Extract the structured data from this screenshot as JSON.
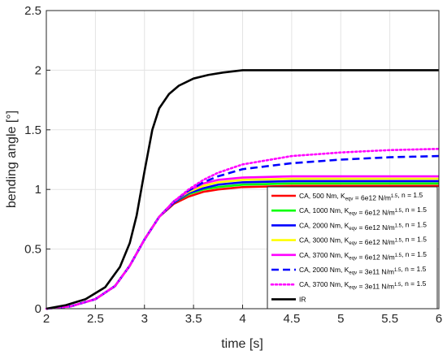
{
  "chart_data": {
    "type": "line",
    "xlabel": "time [s]",
    "ylabel": "bending angle [°]",
    "xlim": [
      2,
      6
    ],
    "ylim": [
      0,
      2.5
    ],
    "x_ticks": [
      "2",
      "2.5",
      "3",
      "3.5",
      "4",
      "4.5",
      "5",
      "5.5",
      "6"
    ],
    "y_ticks": [
      "0",
      "0.5",
      "1",
      "1.5",
      "2",
      "2.5"
    ],
    "grid": true,
    "legend_position": "bottom-right",
    "series": [
      {
        "name": "CA,  500 Nm, Keqv = 6e12 N/m1.5, n = 1.5",
        "legend": {
          "prefix": "CA,  500 Nm, K",
          "sub": "eqv",
          "mid": " = 6e12 N/m",
          "sup": "1.5",
          "suffix": ", n = 1.5"
        },
        "color": "#ff0000",
        "style": "solid",
        "x": [
          2,
          2.25,
          2.5,
          2.7,
          2.85,
          3,
          3.15,
          3.3,
          3.45,
          3.6,
          3.75,
          4,
          4.5,
          5,
          6
        ],
        "y": [
          0,
          0.02,
          0.08,
          0.19,
          0.36,
          0.58,
          0.77,
          0.88,
          0.94,
          0.98,
          1.0,
          1.02,
          1.03,
          1.03,
          1.03
        ]
      },
      {
        "name": "CA, 1000 Nm, Keqv = 6e12 N/m1.5, n = 1.5",
        "legend": {
          "prefix": "CA, 1000 Nm, K",
          "sub": "eqv",
          "mid": " = 6e12 N/m",
          "sup": "1.5",
          "suffix": ", n = 1.5"
        },
        "color": "#00ff00",
        "style": "solid",
        "x": [
          2,
          2.25,
          2.5,
          2.7,
          2.85,
          3,
          3.15,
          3.3,
          3.45,
          3.6,
          3.75,
          4,
          4.5,
          5,
          6
        ],
        "y": [
          0,
          0.02,
          0.08,
          0.19,
          0.36,
          0.58,
          0.77,
          0.89,
          0.96,
          1.0,
          1.02,
          1.04,
          1.05,
          1.05,
          1.05
        ]
      },
      {
        "name": "CA, 2000 Nm, Keqv = 6e12 N/m1.5, n = 1.5",
        "legend": {
          "prefix": "CA, 2000 Nm, K",
          "sub": "eqv",
          "mid": " = 6e12 N/m",
          "sup": "1.5",
          "suffix": ", n = 1.5"
        },
        "color": "#0000ff",
        "style": "solid",
        "x": [
          2,
          2.25,
          2.5,
          2.7,
          2.85,
          3,
          3.15,
          3.3,
          3.45,
          3.6,
          3.75,
          4,
          4.5,
          5,
          6
        ],
        "y": [
          0,
          0.02,
          0.08,
          0.19,
          0.36,
          0.58,
          0.77,
          0.89,
          0.97,
          1.01,
          1.04,
          1.06,
          1.07,
          1.07,
          1.07
        ]
      },
      {
        "name": "CA, 3000 Nm, Keqv = 6e12 N/m1.5, n = 1.5",
        "legend": {
          "prefix": "CA, 3000 Nm, K",
          "sub": "eqv",
          "mid": " = 6e12 N/m",
          "sup": "1.5",
          "suffix": ", n = 1.5"
        },
        "color": "#ffff00",
        "style": "solid",
        "x": [
          2,
          2.25,
          2.5,
          2.7,
          2.85,
          3,
          3.15,
          3.3,
          3.45,
          3.6,
          3.75,
          4,
          4.5,
          5,
          6
        ],
        "y": [
          0,
          0.02,
          0.08,
          0.19,
          0.36,
          0.58,
          0.77,
          0.9,
          0.98,
          1.03,
          1.06,
          1.08,
          1.09,
          1.09,
          1.09
        ]
      },
      {
        "name": "CA, 3700 Nm, Keqv = 6e12 N/m1.5, n = 1.5",
        "legend": {
          "prefix": "CA, 3700 Nm, K",
          "sub": "eqv",
          "mid": " = 6e12 N/m",
          "sup": "1.5",
          "suffix": ", n = 1.5"
        },
        "color": "#ff00ff",
        "style": "solid",
        "x": [
          2,
          2.25,
          2.5,
          2.7,
          2.85,
          3,
          3.15,
          3.3,
          3.45,
          3.6,
          3.75,
          4,
          4.5,
          5,
          6
        ],
        "y": [
          0,
          0.02,
          0.08,
          0.19,
          0.36,
          0.58,
          0.77,
          0.9,
          0.99,
          1.05,
          1.08,
          1.1,
          1.11,
          1.11,
          1.11
        ]
      },
      {
        "name": "CA, 2000 Nm, Keqv = 3e11 N/m1.5, n = 1.5",
        "legend": {
          "prefix": "CA, 2000 Nm, K",
          "sub": "eqv",
          "mid": " = 3e11 N/m",
          "sup": "1.5",
          "suffix": ", n = 1.5"
        },
        "color": "#0000ff",
        "style": "dashed",
        "x": [
          2,
          2.25,
          2.5,
          2.7,
          2.85,
          3,
          3.15,
          3.3,
          3.45,
          3.6,
          3.75,
          4,
          4.5,
          5,
          5.5,
          6
        ],
        "y": [
          0,
          0.02,
          0.08,
          0.19,
          0.36,
          0.58,
          0.77,
          0.9,
          0.99,
          1.06,
          1.11,
          1.17,
          1.22,
          1.25,
          1.27,
          1.28
        ]
      },
      {
        "name": "CA, 3700 Nm, Keqv = 3e11 N/m1.5, n = 1.5",
        "legend": {
          "prefix": "CA, 3700 Nm, K",
          "sub": "eqv",
          "mid": " = 3e11 N/m",
          "sup": "1.5",
          "suffix": ", n = 1.5"
        },
        "color": "#ff00ff",
        "style": "dotted",
        "x": [
          2,
          2.25,
          2.5,
          2.7,
          2.85,
          3,
          3.15,
          3.3,
          3.45,
          3.6,
          3.75,
          4,
          4.5,
          5,
          5.5,
          6
        ],
        "y": [
          0,
          0.02,
          0.08,
          0.19,
          0.36,
          0.58,
          0.77,
          0.9,
          1.0,
          1.08,
          1.14,
          1.21,
          1.28,
          1.31,
          1.33,
          1.34
        ]
      },
      {
        "name": "IR",
        "legend": {
          "prefix": "IR",
          "sub": "",
          "mid": "",
          "sup": "",
          "suffix": ""
        },
        "color": "#000000",
        "style": "solid",
        "x": [
          2,
          2.2,
          2.4,
          2.6,
          2.75,
          2.85,
          2.92,
          3,
          3.08,
          3.15,
          3.25,
          3.35,
          3.5,
          3.65,
          3.8,
          4,
          4.5,
          5,
          6
        ],
        "y": [
          0,
          0.03,
          0.08,
          0.18,
          0.35,
          0.55,
          0.78,
          1.15,
          1.5,
          1.68,
          1.8,
          1.87,
          1.93,
          1.96,
          1.98,
          2.0,
          2.0,
          2.0,
          2.0
        ]
      }
    ]
  }
}
